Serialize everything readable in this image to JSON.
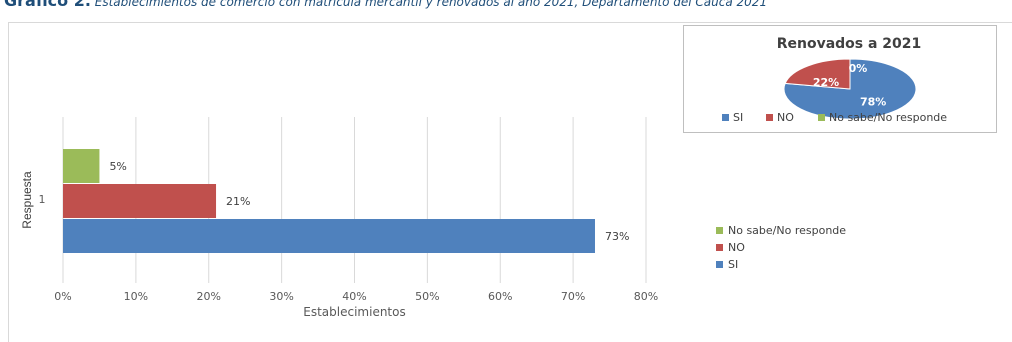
{
  "caption": {
    "lead": "Gráfico 2.",
    "rest": " Establecimientos de comercio con matrícula mercantil y renovados al año 2021, Departamento del Cauca 2021"
  },
  "chart_data": [
    {
      "type": "bar",
      "orientation": "horizontal",
      "categories": [
        "1"
      ],
      "series": [
        {
          "name": "No sabe/No responde",
          "values": [
            5
          ],
          "label": "5%",
          "color": "#9bbb59"
        },
        {
          "name": "NO",
          "values": [
            21
          ],
          "label": "21%",
          "color": "#c0504d"
        },
        {
          "name": "SI",
          "values": [
            73
          ],
          "label": "73%",
          "color": "#4f81bd"
        }
      ],
      "xlabel": "Establecimientos",
      "ylabel": "Respuesta",
      "xlim": [
        0,
        80
      ],
      "xticks": [
        "0%",
        "10%",
        "20%",
        "30%",
        "40%",
        "50%",
        "60%",
        "70%",
        "80%"
      ],
      "grid": true,
      "legend": "right",
      "unit": "%"
    },
    {
      "type": "pie",
      "title": "Renovados a 2021",
      "slices": [
        {
          "name": "SI",
          "value": 78,
          "label": "78%",
          "color": "#4f81bd"
        },
        {
          "name": "NO",
          "value": 22,
          "label": "22%",
          "color": "#c0504d"
        },
        {
          "name": "No sabe/No responde",
          "value": 0,
          "label": "0%",
          "color": "#9bbb59"
        }
      ],
      "legend": "bottom",
      "unit": "%"
    }
  ]
}
